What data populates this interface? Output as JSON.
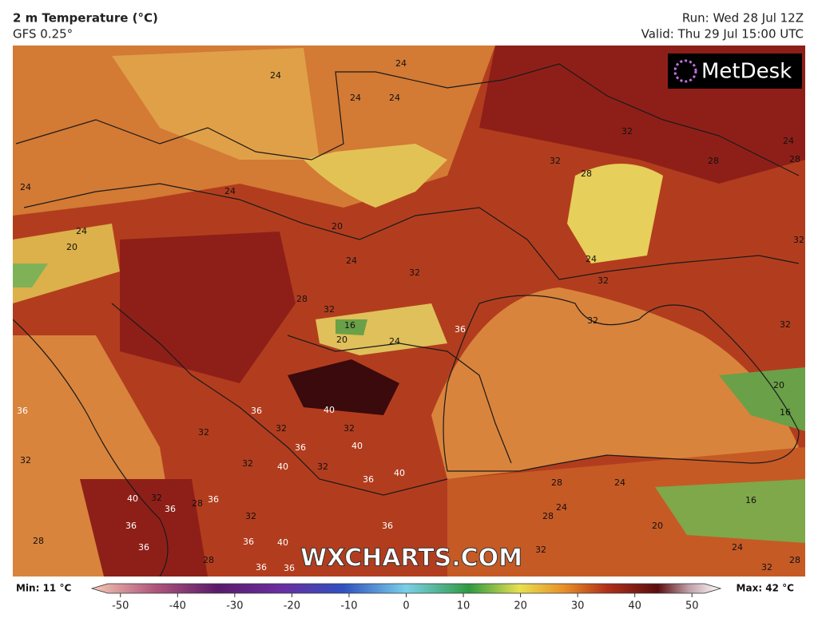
{
  "header": {
    "title": "2 m Temperature (°C)",
    "model": "GFS 0.25°",
    "run": "Run: Wed 28 Jul 12Z",
    "valid": "Valid: Thu 29 Jul 15:00 UTC"
  },
  "logo": "MetDesk",
  "watermark": "WXCHARTS.COM",
  "colorbar": {
    "min_label": "Min: 11 °C",
    "max_label": "Max: 42 °C",
    "lim": [
      -55,
      55
    ],
    "ticks": [
      -50,
      -40,
      -30,
      -20,
      -10,
      0,
      10,
      20,
      30,
      40,
      50
    ]
  },
  "map_labels": [
    24,
    24,
    24,
    24,
    24,
    24,
    24,
    20,
    20,
    24,
    32,
    28,
    32,
    16,
    20,
    24,
    36,
    32,
    32,
    28,
    28,
    24,
    28,
    32,
    24,
    32,
    32,
    32,
    20,
    16,
    40,
    36,
    32,
    32,
    32,
    40,
    36,
    32,
    36,
    32,
    40,
    32,
    36,
    40,
    28,
    24,
    24,
    28,
    16,
    20,
    40,
    32,
    36,
    28,
    36,
    32,
    36,
    28,
    36,
    36,
    40,
    36,
    32,
    24,
    28,
    32,
    36,
    36,
    28
  ]
}
